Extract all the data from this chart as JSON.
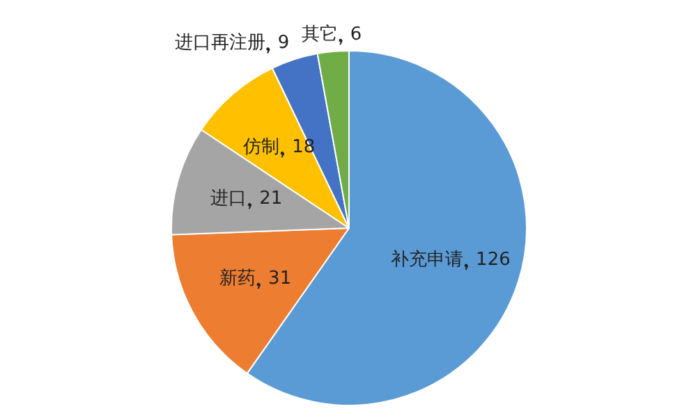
{
  "chart_data": {
    "type": "pie",
    "categories": [
      "补充申请",
      "新药",
      "进口",
      "仿制",
      "进口再注册",
      "其它"
    ],
    "values": [
      126,
      31,
      21,
      18,
      9,
      6
    ],
    "colors": [
      "#5b9bd5",
      "#ed7d31",
      "#a5a5a5",
      "#ffc000",
      "#4472c4",
      "#70ad47"
    ],
    "data_labels": true,
    "legend": false
  }
}
